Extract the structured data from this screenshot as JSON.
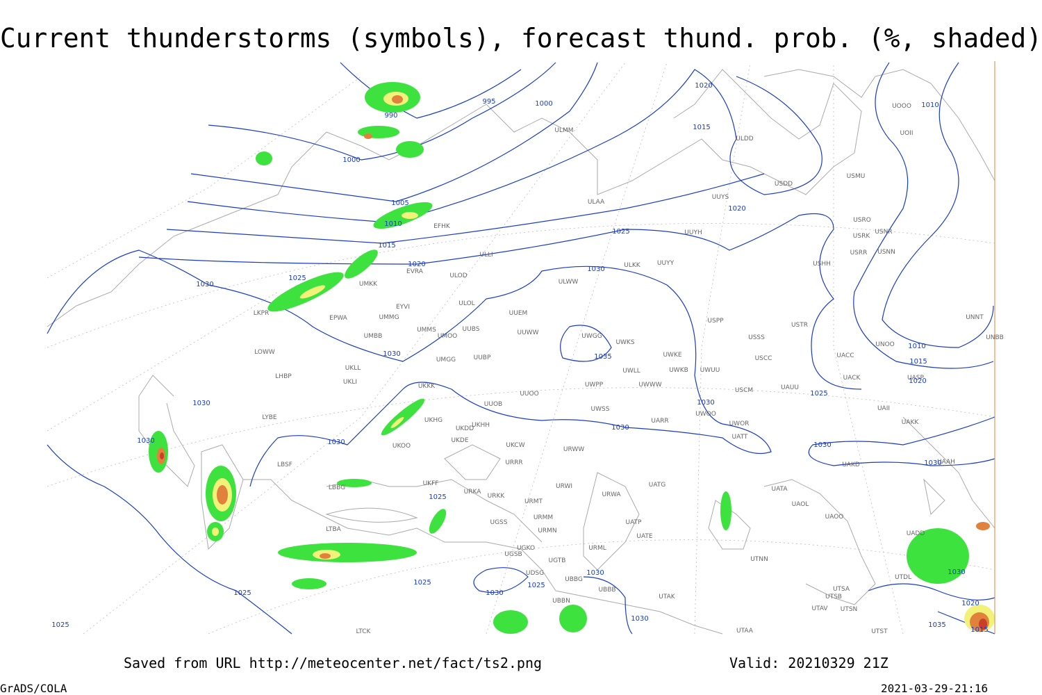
{
  "header": {
    "title": "Current thunderstorms (symbols), forecast thund. prob. (%, shaded)"
  },
  "footer": {
    "source": "Saved from URL http://meteocenter.net/fact/ts2.png",
    "valid": "Valid: 20210329 21Z",
    "software": "GrADS/COLA",
    "timestamp": "2021-03-29-21:16"
  },
  "map": {
    "stations": [
      "ULMM",
      "ULDD",
      "USDD",
      "USMU",
      "ULAA",
      "UUYS",
      "USRO",
      "USRK",
      "USNR",
      "USRR",
      "USNN",
      "UUYH",
      "EFHK",
      "ULLI",
      "ULKK",
      "UUYY",
      "USHH",
      "EVRA",
      "ULOD",
      "EPWA",
      "UMKK",
      "ULWW",
      "EYVI",
      "ULOL",
      "UMMG",
      "UUEM",
      "LKPR",
      "USPP",
      "USTR",
      "UMMS",
      "UUBS",
      "UUWW",
      "UMOO",
      "UMBB",
      "UWGG",
      "UWKS",
      "USSS",
      "UNNT",
      "UNOO",
      "UNBB",
      "LOWW",
      "UMGG",
      "UUBP",
      "UWKE",
      "UACC",
      "USCC",
      "UKLL",
      "UWLL",
      "UWKB",
      "UWUU",
      "UACK",
      "UASP",
      "LHBP",
      "UKLI",
      "UKKK",
      "UWPP",
      "UWWW",
      "USCM",
      "UAUU",
      "UUOO",
      "UUOB",
      "UWSS",
      "UAII",
      "LYBE",
      "UKHG",
      "UKDD",
      "UKHH",
      "UWOO",
      "UARR",
      "UAKK",
      "UWOR",
      "UKDE",
      "UKOO",
      "UKCW",
      "UATT",
      "URWW",
      "UAKD",
      "URRR",
      "LBSF",
      "UAAH",
      "UKFF",
      "LBBG",
      "URKA",
      "URKK",
      "URWI",
      "UATG",
      "UATA",
      "URMT",
      "URWA",
      "UAOL",
      "URMM",
      "UGSS",
      "UATP",
      "UAOO",
      "LTBA",
      "URMN",
      "UATE",
      "UADD",
      "URML",
      "UGSB",
      "UGKO",
      "UGTB",
      "UTNN",
      "UTDL",
      "UDSG",
      "UBBG",
      "UBBB",
      "UTSA",
      "UTAK",
      "UTSB",
      "UBBN",
      "UTAV",
      "UTSN",
      "LTCK",
      "UTAA",
      "UTST",
      "UOOO",
      "UOII"
    ],
    "isobar_labels": [
      990,
      995,
      1000,
      1000,
      1020,
      1015,
      1005,
      1010,
      1015,
      1020,
      1025,
      1030,
      1020,
      1025,
      1030,
      1010,
      1035,
      1030,
      1030,
      1030,
      1030,
      1030,
      1025,
      1030,
      1030,
      1030,
      1010,
      1015,
      1020,
      1025,
      1025,
      1030,
      1025,
      1030,
      1030,
      1025,
      1025,
      1030,
      1020,
      1035,
      1015
    ]
  }
}
